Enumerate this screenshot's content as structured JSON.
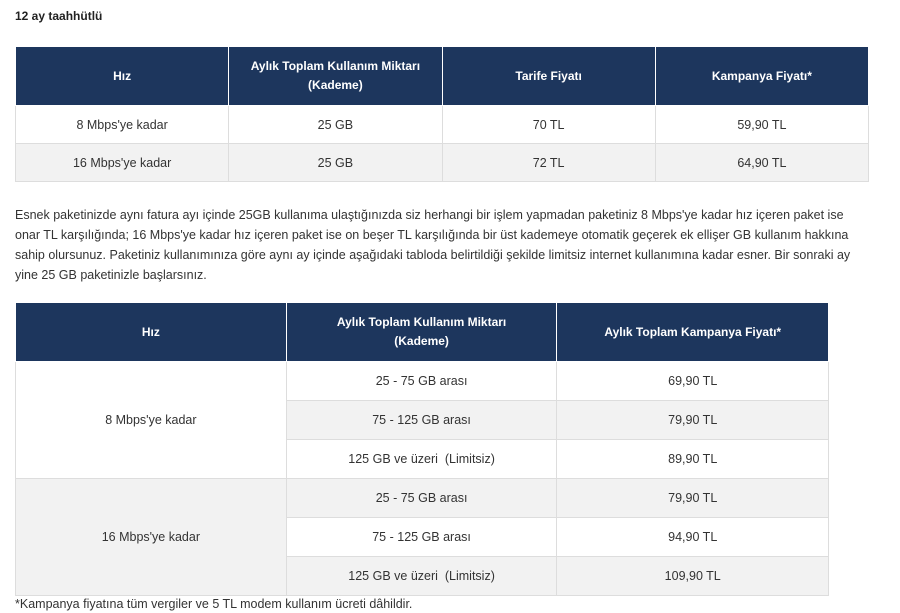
{
  "heading": "12 ay taahhütlü",
  "table1": {
    "headers": [
      "Hız",
      "Aylık Toplam Kullanım Miktarı\n(Kademe)",
      "Tarife Fiyatı",
      "Kampanya Fiyatı*"
    ],
    "rows": [
      [
        "8 Mbps'ye kadar",
        "25 GB",
        "70 TL",
        "59,90 TL"
      ],
      [
        "16 Mbps'ye kadar",
        "25 GB",
        "72 TL",
        "64,90 TL"
      ]
    ]
  },
  "paragraph": "Esnek paketinizde aynı fatura ayı içinde 25GB kullanıma ulaştığınızda siz herhangi bir işlem yapmadan paketiniz 8 Mbps'ye kadar hız içeren paket ise onar TL karşılığında; 16 Mbps'ye kadar hız içeren paket ise on beşer TL karşılığında bir üst kademeye otomatik geçerek ek ellişer GB kullanım hakkına sahip olursunuz. Paketiniz kullanımınıza göre aynı ay içinde aşağıdaki tabloda belirtildiği şekilde limitsiz internet kullanımına kadar esner. Bir sonraki ay yine 25 GB paketinizle başlarsınız.",
  "table2": {
    "headers": [
      "Hız",
      "Aylık Toplam Kullanım Miktarı\n(Kademe)",
      "Aylık Toplam Kampanya Fiyatı*"
    ],
    "groups": [
      {
        "speed": "8 Mbps'ye kadar",
        "rows": [
          [
            "25 - 75 GB arası",
            "69,90 TL"
          ],
          [
            "75 - 125 GB arası",
            "79,90 TL"
          ],
          [
            "125 GB ve üzeri  (Limitsiz)",
            "89,90 TL"
          ]
        ]
      },
      {
        "speed": "16 Mbps'ye kadar",
        "rows": [
          [
            "25 - 75 GB arası",
            "79,90 TL"
          ],
          [
            "75 - 125 GB arası",
            "94,90 TL"
          ],
          [
            "125 GB ve üzeri  (Limitsiz)",
            "109,90 TL"
          ]
        ]
      }
    ]
  },
  "footnote": "*Kampanya fiyatına tüm vergiler ve 5 TL modem kullanım ücreti dâhildir.",
  "colors": {
    "header_bg": "#1d365d",
    "alt_row": "#f2f2f2",
    "border": "#dddddd"
  }
}
